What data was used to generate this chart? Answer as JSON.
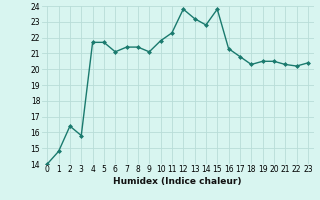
{
  "x": [
    0,
    1,
    2,
    3,
    4,
    5,
    6,
    7,
    8,
    9,
    10,
    11,
    12,
    13,
    14,
    15,
    16,
    17,
    18,
    19,
    20,
    21,
    22,
    23
  ],
  "y": [
    14.0,
    14.8,
    16.4,
    15.8,
    21.7,
    21.7,
    21.1,
    21.4,
    21.4,
    21.1,
    21.8,
    22.3,
    23.8,
    23.2,
    22.8,
    23.8,
    21.3,
    20.8,
    20.3,
    20.5,
    20.5,
    20.3,
    20.2,
    20.4
  ],
  "line_color": "#1a7a6e",
  "marker": "D",
  "marker_size": 2,
  "bg_color": "#d8f5f0",
  "grid_color": "#b8ddd8",
  "xlabel": "Humidex (Indice chaleur)",
  "ylim": [
    14,
    24
  ],
  "xlim": [
    -0.5,
    23.5
  ],
  "yticks": [
    14,
    15,
    16,
    17,
    18,
    19,
    20,
    21,
    22,
    23,
    24
  ],
  "xticks": [
    0,
    1,
    2,
    3,
    4,
    5,
    6,
    7,
    8,
    9,
    10,
    11,
    12,
    13,
    14,
    15,
    16,
    17,
    18,
    19,
    20,
    21,
    22,
    23
  ],
  "tick_fontsize": 5.5,
  "xlabel_fontsize": 6.5
}
